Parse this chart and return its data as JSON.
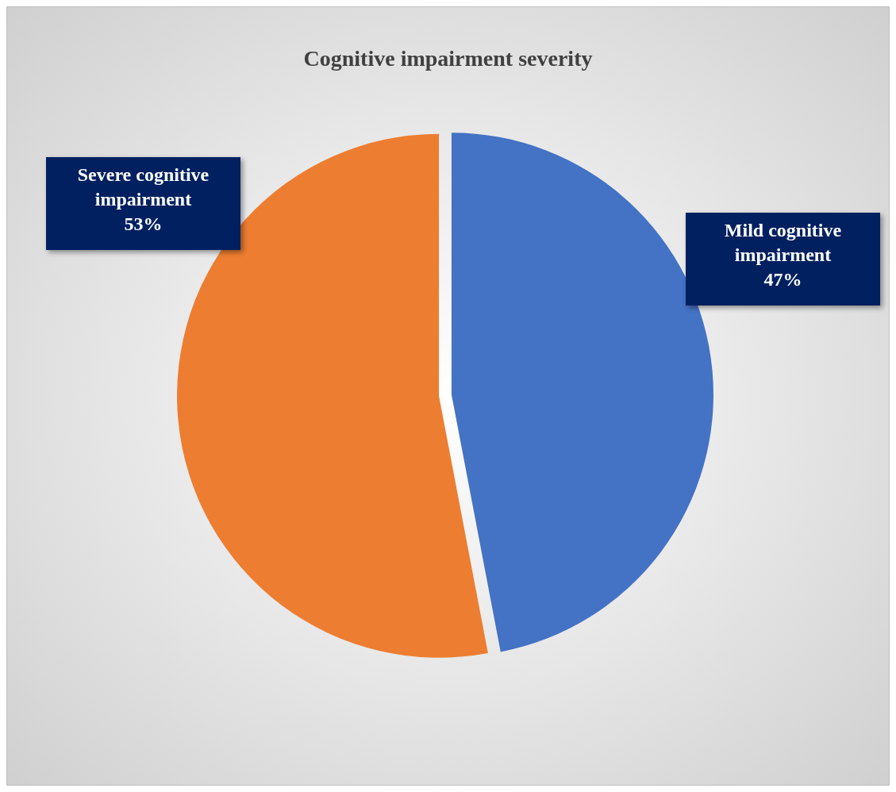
{
  "chart_data": {
    "type": "pie",
    "title": "Cognitive impairment severity",
    "categories": [
      "Mild cognitive impairment",
      "Severe cognitive impairment"
    ],
    "values": [
      47,
      53
    ],
    "colors": [
      "#4472c4",
      "#ed7d31"
    ],
    "value_labels": [
      "47%",
      "53%"
    ]
  }
}
